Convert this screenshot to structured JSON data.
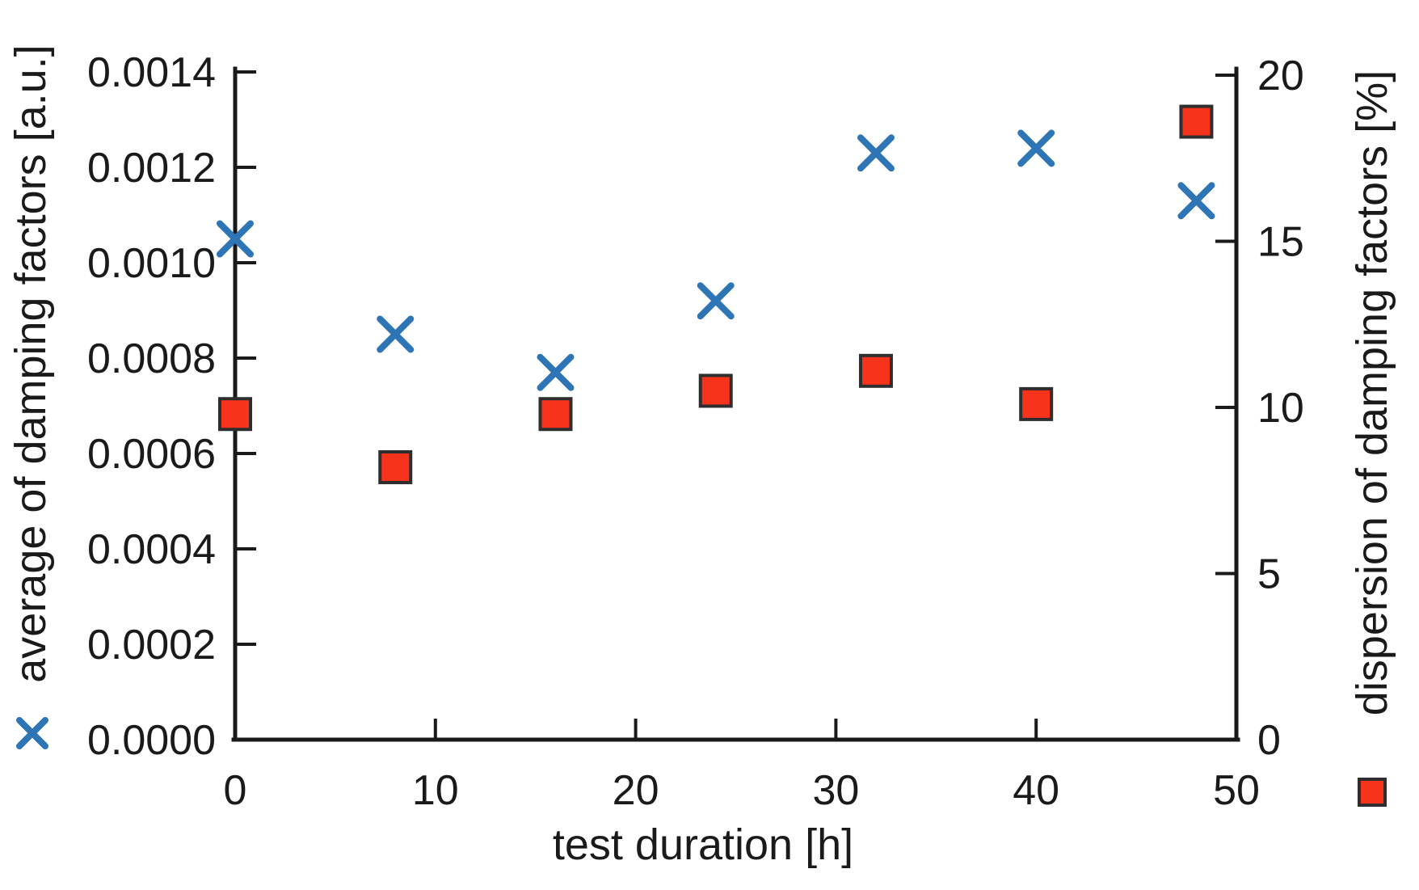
{
  "figure": {
    "background": "#ffffff",
    "axis_color": "#1a1a1a",
    "text_color": "#1a1a1a"
  },
  "chart_data": {
    "type": "scatter",
    "x": [
      0,
      8,
      16,
      24,
      32,
      40,
      48
    ],
    "series": [
      {
        "name": "average of damping factors",
        "axis": "left",
        "marker": "x",
        "color": "#2E75B6",
        "values": [
          0.00105,
          0.00085,
          0.00077,
          0.00092,
          0.00123,
          0.00124,
          0.00113
        ]
      },
      {
        "name": "dispersion of damping factors",
        "axis": "right",
        "marker": "square",
        "color": "#F8331B",
        "marker_border": "#2e2e2e",
        "values": [
          9.8,
          8.2,
          9.8,
          10.5,
          11.1,
          10.1,
          18.6
        ]
      }
    ],
    "x_axis": {
      "label": "test duration [h]",
      "ticks": [
        "0",
        "10",
        "20",
        "30",
        "40",
        "50"
      ],
      "tick_values": [
        0,
        10,
        20,
        30,
        40,
        50
      ],
      "range": [
        0,
        50
      ]
    },
    "left_axis": {
      "label": "average of damping factors [a.u.]",
      "ticks": [
        "0.0000",
        "0.0002",
        "0.0004",
        "0.0006",
        "0.0008",
        "0.0010",
        "0.0012",
        "0.0014"
      ],
      "tick_values": [
        0,
        0.0002,
        0.0004,
        0.0006,
        0.0008,
        0.001,
        0.0012,
        0.0014
      ],
      "range": [
        0,
        0.0014
      ]
    },
    "right_axis": {
      "label": "dispersion of damping factors [%]",
      "ticks": [
        "0",
        "5",
        "10",
        "15",
        "20"
      ],
      "tick_values": [
        0,
        5,
        10,
        15,
        20
      ],
      "range": [
        0,
        20
      ]
    },
    "legend": {
      "left_series_marker": "x",
      "right_series_marker": "square"
    },
    "grid": false
  }
}
